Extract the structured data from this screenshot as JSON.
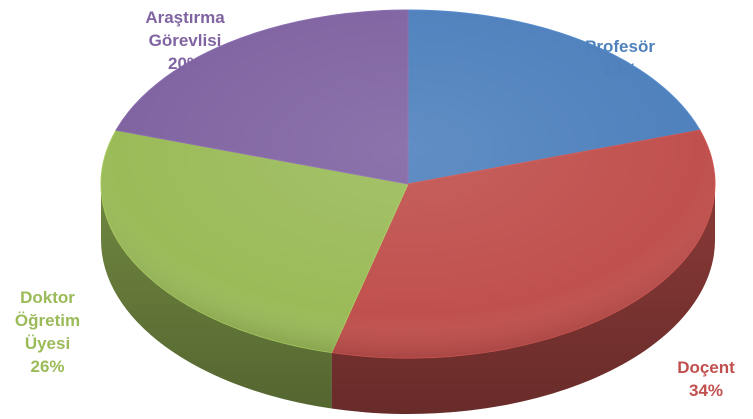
{
  "chart_data": {
    "type": "pie",
    "title": "",
    "style": "3d",
    "slices": [
      {
        "label_lines": [
          "Profesör"
        ],
        "percent_label": "20%",
        "value": 20,
        "color": "#4f81bd",
        "label_color": "#4f81bd"
      },
      {
        "label_lines": [
          "Doçent"
        ],
        "percent_label": "34%",
        "value": 34,
        "color": "#c0504d",
        "label_color": "#c0504d"
      },
      {
        "label_lines": [
          "Doktor",
          "Öğretim",
          "Üyesi"
        ],
        "percent_label": "26%",
        "value": 26,
        "color": "#9bbb59",
        "label_color": "#9bbb59"
      },
      {
        "label_lines": [
          "Araştırma",
          "Görevlisi"
        ],
        "percent_label": "20%",
        "value": 20,
        "color": "#8064a2",
        "label_color": "#8064a2"
      }
    ]
  }
}
